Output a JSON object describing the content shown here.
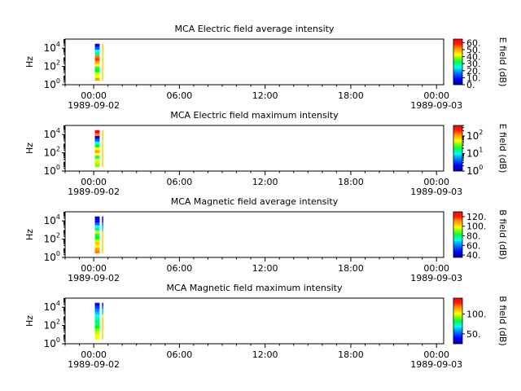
{
  "chart_data": [
    {
      "type": "heatmap",
      "title": "MCA  Electric field average intensity",
      "ylabel": "Hz",
      "y_scale": "log",
      "ylim": [
        1,
        100000
      ],
      "y_ticks": [
        {
          "value": 1,
          "base": "10",
          "exp": "0"
        },
        {
          "value": 100,
          "base": "10",
          "exp": "2"
        },
        {
          "value": 10000,
          "base": "10",
          "exp": "4"
        }
      ],
      "xlim": [
        "1989-09-01 22:00",
        "1989-09-03 00:30"
      ],
      "x_ticks": [
        {
          "time": "1989-09-02 00:00",
          "label": "00:00",
          "date": "1989-09-02"
        },
        {
          "time": "1989-09-02 06:00",
          "label": "06:00",
          "date": ""
        },
        {
          "time": "1989-09-02 12:00",
          "label": "12:00",
          "date": ""
        },
        {
          "time": "1989-09-02 18:00",
          "label": "18:00",
          "date": ""
        },
        {
          "time": "1989-09-03 00:00",
          "label": "00:00",
          "date": "1989-09-03"
        }
      ],
      "colorbar": {
        "label": "E field (dB)",
        "scale": "linear",
        "range": [
          0,
          65
        ],
        "ticks": [
          {
            "value": 0,
            "label": "0."
          },
          {
            "value": 10,
            "label": "10."
          },
          {
            "value": 20,
            "label": "20."
          },
          {
            "value": 30,
            "label": "30."
          },
          {
            "value": 40,
            "label": "40."
          },
          {
            "value": 50,
            "label": "50."
          },
          {
            "value": 60,
            "label": "60."
          }
        ]
      },
      "data": {
        "segments": [
          {
            "t_start": "1989-09-02 00:05",
            "t_end": "1989-09-02 00:25",
            "colors": [
              "#ffa500",
              "#ffff00",
              "#c0ff00",
              "#00ff00",
              "#00ff80",
              "#ffff00",
              "#ffa500",
              "#ff4000",
              "#ff8000",
              "#00ff80",
              "#00ffff",
              "#0060ff",
              "#0000ff"
            ]
          },
          {
            "t_start": "1989-09-02 00:35",
            "t_end": "1989-09-02 00:40",
            "colors": [
              "#ffd000",
              "#ffd000",
              "#c0ff00",
              "#ffd000",
              "#ffd000",
              "#ffd000",
              "#ffd000",
              "#ffd000",
              "#c0ff00",
              "#ffd000",
              "#ffd000",
              "#ffd000",
              "#ffd000"
            ]
          }
        ],
        "channel_count": 13,
        "freq_range_hz": [
          3,
          31000
        ]
      }
    },
    {
      "type": "heatmap",
      "title": "MCA  Electric field maximum intensity",
      "ylabel": "Hz",
      "y_scale": "log",
      "ylim": [
        1,
        100000
      ],
      "y_ticks": [
        {
          "value": 1,
          "base": "10",
          "exp": "0"
        },
        {
          "value": 100,
          "base": "10",
          "exp": "2"
        },
        {
          "value": 10000,
          "base": "10",
          "exp": "4"
        }
      ],
      "xlim": [
        "1989-09-01 22:00",
        "1989-09-03 00:30"
      ],
      "x_ticks": [
        {
          "time": "1989-09-02 00:00",
          "label": "00:00",
          "date": "1989-09-02"
        },
        {
          "time": "1989-09-02 06:00",
          "label": "06:00",
          "date": ""
        },
        {
          "time": "1989-09-02 12:00",
          "label": "12:00",
          "date": ""
        },
        {
          "time": "1989-09-02 18:00",
          "label": "18:00",
          "date": ""
        },
        {
          "time": "1989-09-03 00:00",
          "label": "00:00",
          "date": "1989-09-03"
        }
      ],
      "colorbar": {
        "label": "E field (dB)",
        "scale": "log",
        "range": [
          1,
          400
        ],
        "ticks": [
          {
            "value": 1,
            "base": "10",
            "exp": "0"
          },
          {
            "value": 10,
            "base": "10",
            "exp": "1"
          },
          {
            "value": 100,
            "base": "10",
            "exp": "2"
          }
        ]
      },
      "data": {
        "segments": [
          {
            "t_start": "1989-09-02 00:05",
            "t_end": "1989-09-02 00:25",
            "colors": [
              "#80ff00",
              "#c0ff00",
              "#ffff00",
              "#00ff80",
              "#ffff00",
              "#ffa500",
              "#ffff00",
              "#00ff00",
              "#00ffff",
              "#0060ff",
              "#0000ff",
              "#ff8000",
              "#ff0000"
            ]
          },
          {
            "t_start": "1989-09-02 00:35",
            "t_end": "1989-09-02 00:40",
            "colors": [
              "#ffd000",
              "#ffd000",
              "#c0ff00",
              "#ffd000",
              "#ffd000",
              "#ffd000",
              "#ffd000",
              "#ffd000",
              "#c0ff00",
              "#ffd000",
              "#ffd000",
              "#ffd000",
              "#ffd000"
            ]
          }
        ],
        "channel_count": 13,
        "freq_range_hz": [
          3,
          31000
        ]
      }
    },
    {
      "type": "heatmap",
      "title": "MCA  Magnetic field average intensity",
      "ylabel": "Hz",
      "y_scale": "log",
      "ylim": [
        1,
        100000
      ],
      "y_ticks": [
        {
          "value": 1,
          "base": "10",
          "exp": "0"
        },
        {
          "value": 100,
          "base": "10",
          "exp": "2"
        },
        {
          "value": 10000,
          "base": "10",
          "exp": "4"
        }
      ],
      "xlim": [
        "1989-09-01 22:00",
        "1989-09-03 00:30"
      ],
      "x_ticks": [
        {
          "time": "1989-09-02 00:00",
          "label": "00:00",
          "date": "1989-09-02"
        },
        {
          "time": "1989-09-02 06:00",
          "label": "06:00",
          "date": ""
        },
        {
          "time": "1989-09-02 12:00",
          "label": "12:00",
          "date": ""
        },
        {
          "time": "1989-09-02 18:00",
          "label": "18:00",
          "date": ""
        },
        {
          "time": "1989-09-03 00:00",
          "label": "00:00",
          "date": "1989-09-03"
        }
      ],
      "colorbar": {
        "label": "B field (dB)",
        "scale": "linear",
        "range": [
          35,
          130
        ],
        "ticks": [
          {
            "value": 40,
            "label": "40."
          },
          {
            "value": 60,
            "label": "60."
          },
          {
            "value": 80,
            "label": "80."
          },
          {
            "value": 100,
            "label": "100."
          },
          {
            "value": 120,
            "label": "120."
          }
        ]
      },
      "data": {
        "segments": [
          {
            "t_start": "1989-09-02 00:05",
            "t_end": "1989-09-02 00:25",
            "colors": [
              "#ff8000",
              "#ffa500",
              "#ffff00",
              "#ffd000",
              "#c0ff00",
              "#00ff00",
              "#00ff80",
              "#ffff00",
              "#00ff80",
              "#00ffff",
              "#0060ff",
              "#0000ff",
              "#0000e0"
            ]
          },
          {
            "t_start": "1989-09-02 00:35",
            "t_end": "1989-09-02 00:40",
            "colors": [
              "#ffd000",
              "#ffd000",
              "#c0ff00",
              "#ffd000",
              "#ffd000",
              "#ffd000",
              "#ffd000",
              "#ffd000",
              "#00c0ff",
              "#00c0ff",
              "#0060ff",
              "#0000ff",
              "#0000ff"
            ]
          }
        ],
        "channel_count": 13,
        "freq_range_hz": [
          3,
          31000
        ]
      }
    },
    {
      "type": "heatmap",
      "title": "MCA  Magnetic field maximum intensity",
      "ylabel": "Hz",
      "y_scale": "log",
      "ylim": [
        1,
        100000
      ],
      "y_ticks": [
        {
          "value": 1,
          "base": "10",
          "exp": "0"
        },
        {
          "value": 100,
          "base": "10",
          "exp": "2"
        },
        {
          "value": 10000,
          "base": "10",
          "exp": "4"
        }
      ],
      "xlim": [
        "1989-09-01 22:00",
        "1989-09-03 00:30"
      ],
      "x_ticks": [
        {
          "time": "1989-09-02 00:00",
          "label": "00:00",
          "date": "1989-09-02"
        },
        {
          "time": "1989-09-02 06:00",
          "label": "06:00",
          "date": ""
        },
        {
          "time": "1989-09-02 12:00",
          "label": "12:00",
          "date": ""
        },
        {
          "time": "1989-09-02 18:00",
          "label": "18:00",
          "date": ""
        },
        {
          "time": "1989-09-03 00:00",
          "label": "00:00",
          "date": "1989-09-03"
        }
      ],
      "colorbar": {
        "label": "B field (dB)",
        "scale": "linear",
        "range": [
          25,
          140
        ],
        "ticks": [
          {
            "value": 50,
            "label": "50."
          },
          {
            "value": 100,
            "label": "100."
          }
        ]
      },
      "data": {
        "segments": [
          {
            "t_start": "1989-09-02 00:05",
            "t_end": "1989-09-02 00:25",
            "colors": [
              "#ffff00",
              "#ffff00",
              "#c0ff00",
              "#80ff00",
              "#00ff00",
              "#00ff80",
              "#00ff40",
              "#00ffc0",
              "#00ffff",
              "#00c0ff",
              "#0080ff",
              "#0040ff",
              "#0000ff"
            ]
          },
          {
            "t_start": "1989-09-02 00:35",
            "t_end": "1989-09-02 00:40",
            "colors": [
              "#ffd000",
              "#ffd000",
              "#c0ff00",
              "#ffd000",
              "#ffd000",
              "#ffd000",
              "#ffd000",
              "#ffd000",
              "#c0ff00",
              "#00c0ff",
              "#00c0ff",
              "#0060ff",
              "#0000ff"
            ]
          }
        ],
        "channel_count": 13,
        "freq_range_hz": [
          3,
          31000
        ]
      }
    }
  ]
}
